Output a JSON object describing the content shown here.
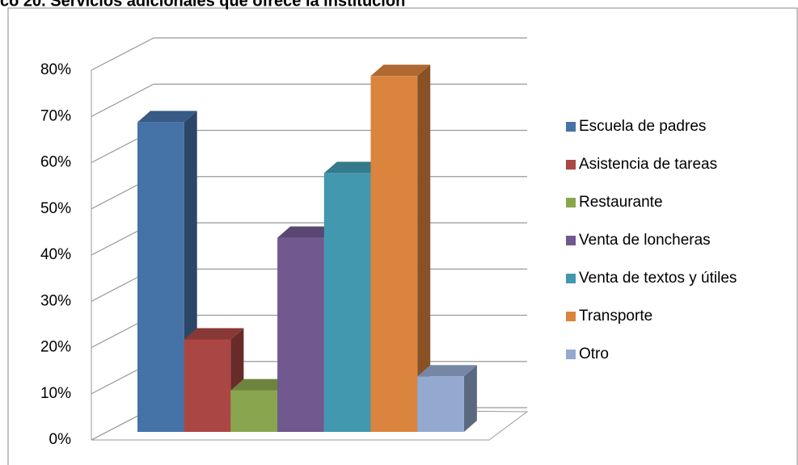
{
  "chart_data": {
    "type": "bar3d",
    "title": "co 20. Servicios adicionales que ofrece la institución",
    "categories": [
      "Escuela de padres",
      "Asistencia de tareas",
      "Restaurante",
      "Venta de loncheras",
      "Venta de textos y útiles",
      "Transporte",
      "Otro"
    ],
    "values": [
      67,
      20,
      9,
      42,
      56,
      77,
      12
    ],
    "colors": [
      "#4572a7",
      "#aa4643",
      "#89a54e",
      "#71588f",
      "#4198af",
      "#db843d",
      "#93a9cf"
    ],
    "ylim": [
      0,
      80
    ],
    "yticks": [
      {
        "value": 0,
        "label": "0%"
      },
      {
        "value": 10,
        "label": "10%"
      },
      {
        "value": 20,
        "label": "20%"
      },
      {
        "value": 30,
        "label": "30%"
      },
      {
        "value": 40,
        "label": "40%"
      },
      {
        "value": 50,
        "label": "50%"
      },
      {
        "value": 60,
        "label": "60%"
      },
      {
        "value": 70,
        "label": "70%"
      },
      {
        "value": 80,
        "label": "80%"
      }
    ],
    "grid": true,
    "legend": "right"
  }
}
